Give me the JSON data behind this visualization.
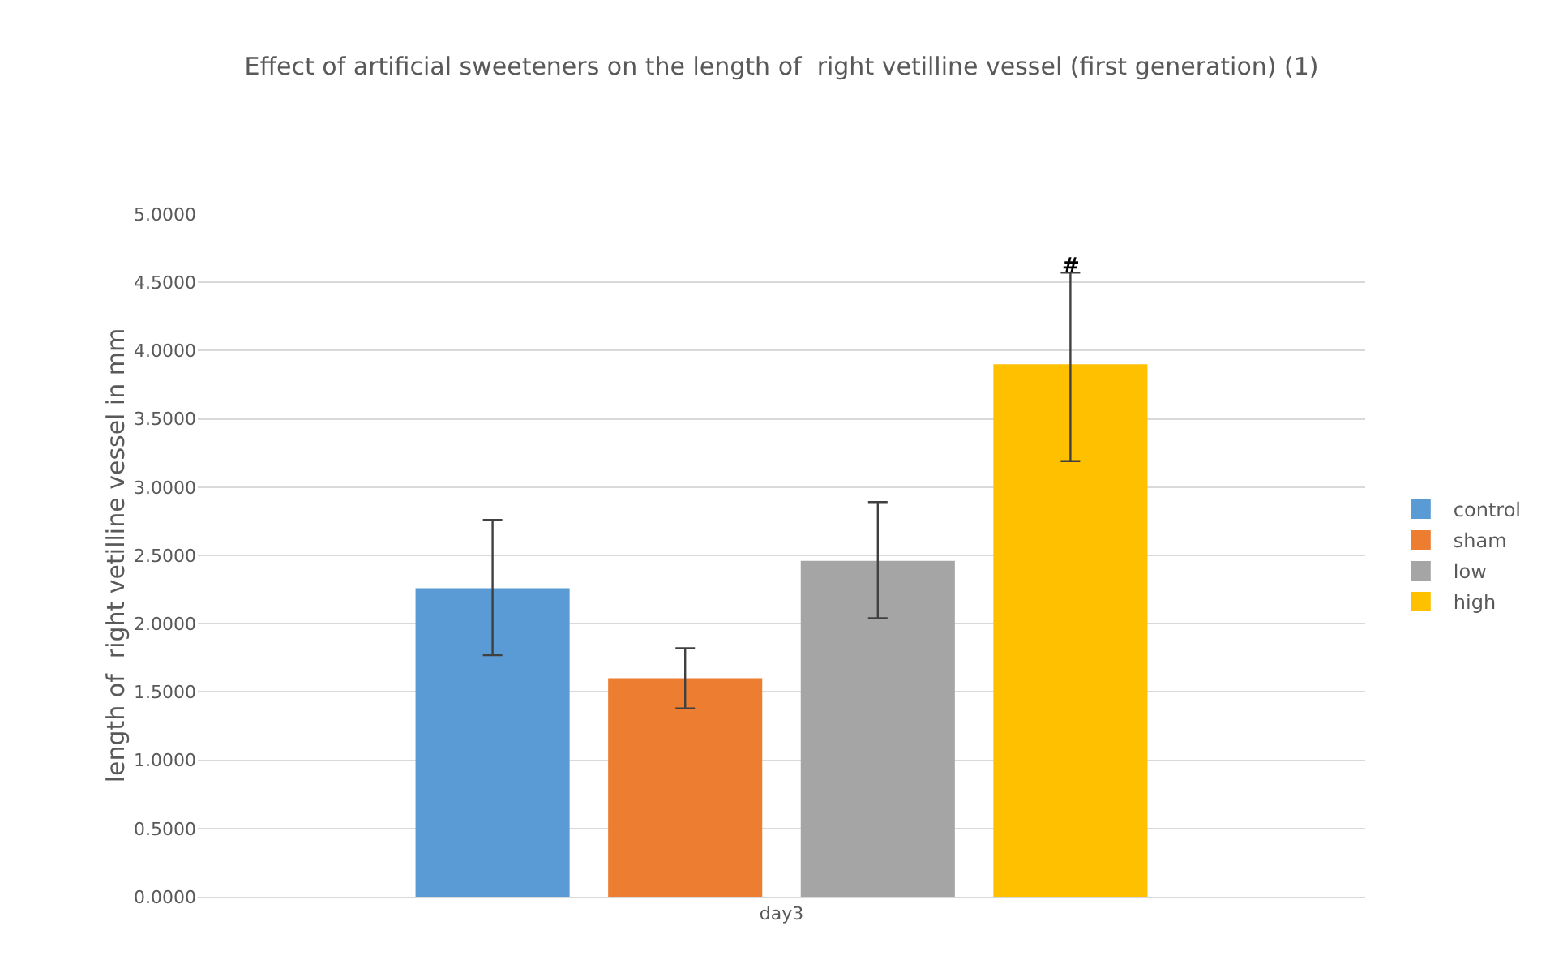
{
  "chart_data": {
    "type": "bar",
    "title": "Effect of artificial sweeteners on the length of  right vetilline vessel (first generation) (1)",
    "ylabel": "length of  right vetilline vessel in mm",
    "categories": [
      "day3"
    ],
    "series": [
      {
        "name": "control",
        "color": "#5b9bd5",
        "values": [
          2.26
        ],
        "errors": [
          [
            1.77,
            2.76
          ]
        ]
      },
      {
        "name": "sham",
        "color": "#ed7d31",
        "values": [
          1.6
        ],
        "errors": [
          [
            1.38,
            1.82
          ]
        ]
      },
      {
        "name": "low",
        "color": "#a5a5a5",
        "values": [
          2.46
        ],
        "errors": [
          [
            2.04,
            2.89
          ]
        ]
      },
      {
        "name": "high",
        "color": "#ffc000",
        "values": [
          3.9
        ],
        "errors": [
          [
            3.19,
            4.57
          ]
        ]
      }
    ],
    "annotations": [
      "#"
    ],
    "ylim": [
      0,
      5
    ],
    "yticks": [
      {
        "value": 0,
        "label": "0.0000"
      },
      {
        "value": 0.5,
        "label": "0.5000"
      },
      {
        "value": 1,
        "label": "1.0000"
      },
      {
        "value": 1.5,
        "label": "1.5000"
      },
      {
        "value": 2,
        "label": "2.0000"
      },
      {
        "value": 2.5,
        "label": "2.5000"
      },
      {
        "value": 3,
        "label": "3.0000"
      },
      {
        "value": 3.5,
        "label": "3.5000"
      },
      {
        "value": 4,
        "label": "4.0000"
      },
      {
        "value": 4.5,
        "label": "4.5000"
      },
      {
        "value": 5,
        "label": "5.0000"
      }
    ],
    "grid": "y",
    "legend": "right"
  }
}
